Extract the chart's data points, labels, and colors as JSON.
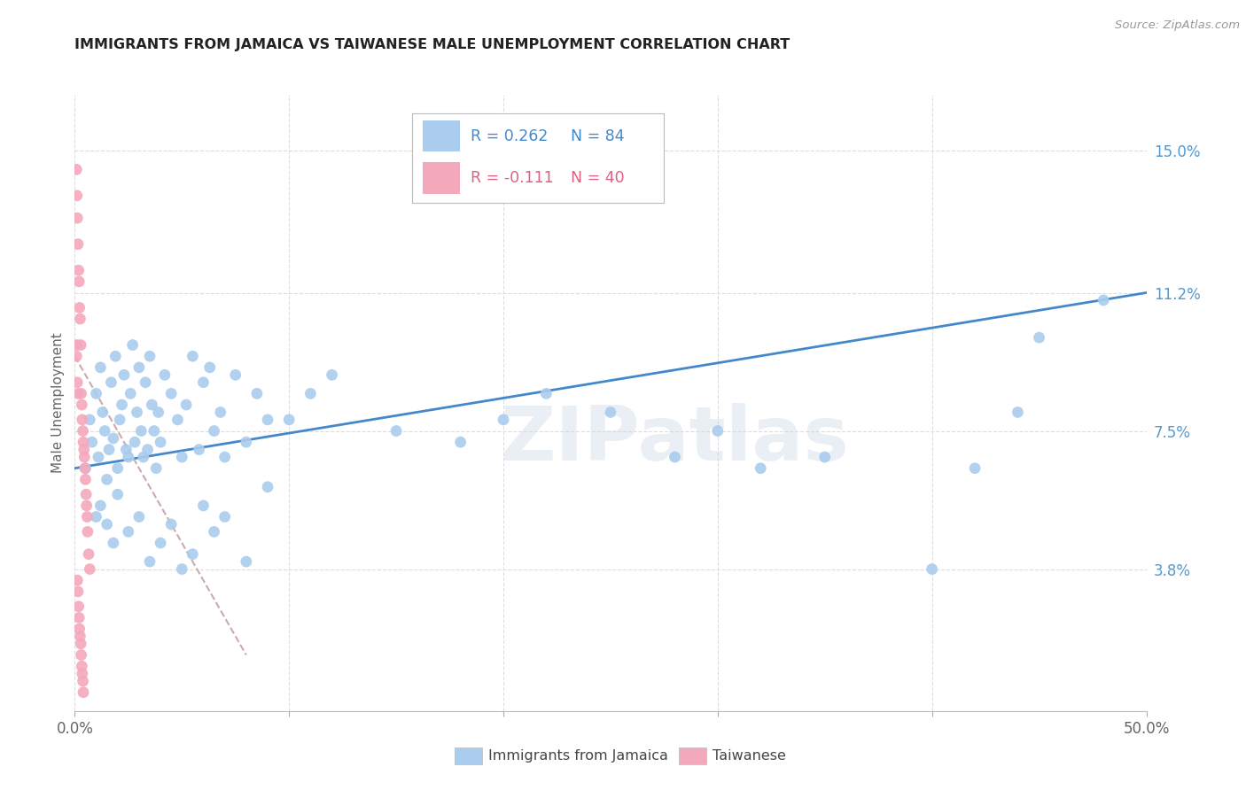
{
  "title": "IMMIGRANTS FROM JAMAICA VS TAIWANESE MALE UNEMPLOYMENT CORRELATION CHART",
  "source": "Source: ZipAtlas.com",
  "ylabel": "Male Unemployment",
  "xlim": [
    0.0,
    50.0
  ],
  "ylim": [
    0.0,
    16.5
  ],
  "yticks": [
    3.8,
    7.5,
    11.2,
    15.0
  ],
  "xticks": [
    0.0,
    10.0,
    20.0,
    30.0,
    40.0,
    50.0
  ],
  "legend_r1": "R = 0.262",
  "legend_n1": "N = 84",
  "legend_r2": "R = -0.111",
  "legend_n2": "N = 40",
  "legend_label1": "Immigrants from Jamaica",
  "legend_label2": "Taiwanese",
  "blue_color": "#aaccee",
  "pink_color": "#f4a8bb",
  "trend_blue_color": "#4488cc",
  "trend_pink_color": "#ccaaaa",
  "watermark": "ZIPatlas",
  "blue_scatter_x": [
    0.5,
    0.7,
    0.8,
    1.0,
    1.1,
    1.2,
    1.3,
    1.4,
    1.5,
    1.6,
    1.7,
    1.8,
    1.9,
    2.0,
    2.1,
    2.2,
    2.3,
    2.4,
    2.5,
    2.6,
    2.7,
    2.8,
    2.9,
    3.0,
    3.1,
    3.2,
    3.3,
    3.4,
    3.5,
    3.6,
    3.7,
    3.8,
    3.9,
    4.0,
    4.2,
    4.5,
    4.8,
    5.0,
    5.2,
    5.5,
    5.8,
    6.0,
    6.3,
    6.5,
    6.8,
    7.0,
    7.5,
    8.0,
    8.5,
    9.0,
    1.0,
    1.2,
    1.5,
    1.8,
    2.0,
    2.5,
    3.0,
    3.5,
    4.0,
    4.5,
    5.0,
    5.5,
    6.0,
    6.5,
    7.0,
    8.0,
    9.0,
    10.0,
    11.0,
    12.0,
    15.0,
    18.0,
    20.0,
    22.0,
    25.0,
    28.0,
    30.0,
    32.0,
    35.0,
    42.0,
    44.0,
    45.0,
    48.0,
    40.0
  ],
  "blue_scatter_y": [
    6.5,
    7.8,
    7.2,
    8.5,
    6.8,
    9.2,
    8.0,
    7.5,
    6.2,
    7.0,
    8.8,
    7.3,
    9.5,
    6.5,
    7.8,
    8.2,
    9.0,
    7.0,
    6.8,
    8.5,
    9.8,
    7.2,
    8.0,
    9.2,
    7.5,
    6.8,
    8.8,
    7.0,
    9.5,
    8.2,
    7.5,
    6.5,
    8.0,
    7.2,
    9.0,
    8.5,
    7.8,
    6.8,
    8.2,
    9.5,
    7.0,
    8.8,
    9.2,
    7.5,
    8.0,
    6.8,
    9.0,
    7.2,
    8.5,
    7.8,
    5.2,
    5.5,
    5.0,
    4.5,
    5.8,
    4.8,
    5.2,
    4.0,
    4.5,
    5.0,
    3.8,
    4.2,
    5.5,
    4.8,
    5.2,
    4.0,
    6.0,
    7.8,
    8.5,
    9.0,
    7.5,
    7.2,
    7.8,
    8.5,
    8.0,
    6.8,
    7.5,
    6.5,
    6.8,
    6.5,
    8.0,
    10.0,
    11.0,
    3.8
  ],
  "pink_scatter_x": [
    0.08,
    0.1,
    0.12,
    0.15,
    0.18,
    0.2,
    0.22,
    0.25,
    0.28,
    0.3,
    0.33,
    0.35,
    0.38,
    0.4,
    0.43,
    0.45,
    0.48,
    0.5,
    0.53,
    0.55,
    0.58,
    0.6,
    0.65,
    0.7,
    0.12,
    0.15,
    0.18,
    0.2,
    0.22,
    0.25,
    0.28,
    0.3,
    0.33,
    0.35,
    0.38,
    0.4,
    0.08,
    0.1,
    0.12,
    0.15
  ],
  "pink_scatter_y": [
    14.5,
    13.8,
    13.2,
    12.5,
    11.8,
    11.5,
    10.8,
    10.5,
    9.8,
    8.5,
    8.2,
    7.8,
    7.5,
    7.2,
    7.0,
    6.8,
    6.5,
    6.2,
    5.8,
    5.5,
    5.2,
    4.8,
    4.2,
    3.8,
    3.5,
    3.2,
    2.8,
    2.5,
    2.2,
    2.0,
    1.8,
    1.5,
    1.2,
    1.0,
    0.8,
    0.5,
    9.5,
    9.8,
    8.8,
    8.5
  ],
  "blue_trend_x": [
    0.0,
    50.0
  ],
  "blue_trend_y": [
    6.5,
    11.2
  ],
  "pink_trend_x": [
    0.0,
    8.0
  ],
  "pink_trend_y": [
    9.5,
    1.5
  ]
}
